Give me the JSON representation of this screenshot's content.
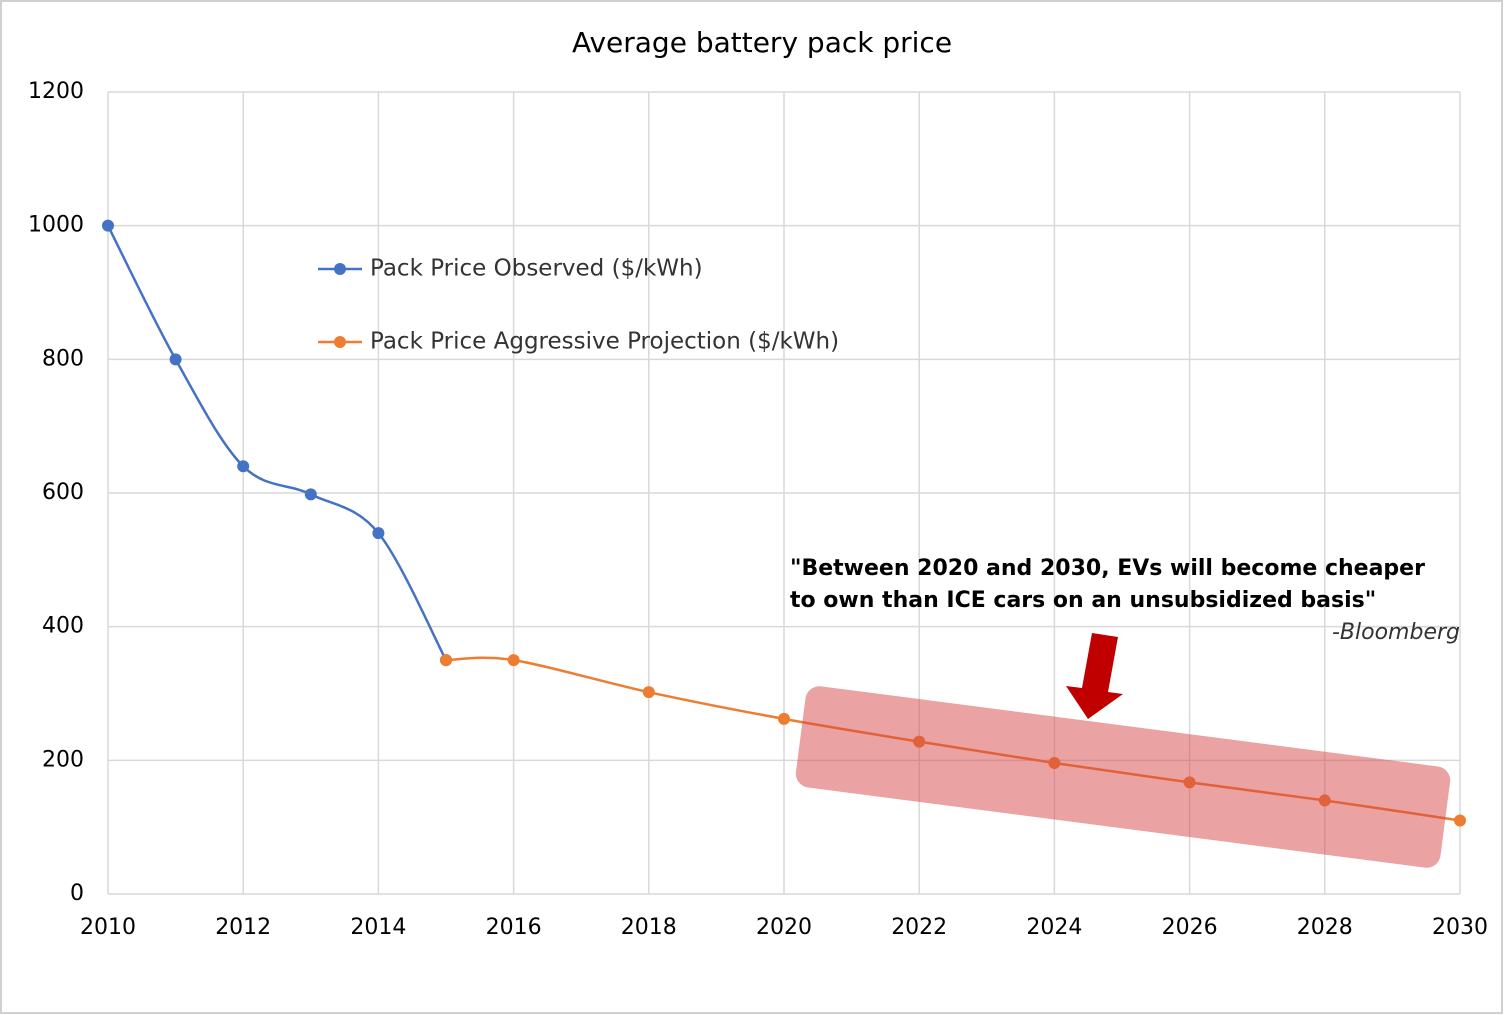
{
  "chart_data": {
    "type": "line",
    "title": "Average battery pack price",
    "x": [
      2010,
      2011,
      2012,
      2013,
      2014,
      2015,
      2016,
      2018,
      2020,
      2022,
      2024,
      2026,
      2028,
      2030
    ],
    "series": [
      {
        "name": "Pack Price Observed ($/kWh)",
        "color": "#4472c4",
        "values": [
          1000,
          800,
          640,
          598,
          540,
          350,
          null,
          null,
          null,
          null,
          null,
          null,
          null,
          null
        ]
      },
      {
        "name": "Pack Price Aggressive Projection ($/kWh)",
        "color": "#ed7d31",
        "values": [
          null,
          null,
          null,
          null,
          null,
          350,
          350,
          302,
          262,
          228,
          196,
          167,
          140,
          110
        ]
      }
    ],
    "xlim": [
      2010,
      2030
    ],
    "xticks": [
      2010,
      2012,
      2014,
      2016,
      2018,
      2020,
      2022,
      2024,
      2026,
      2028,
      2030
    ],
    "ylim": [
      0,
      1200
    ],
    "yticks": [
      0,
      200,
      400,
      600,
      800,
      1000,
      1200
    ],
    "grid": true,
    "smooth": true,
    "annotation": {
      "lines": [
        "\"Between 2020 and 2030, EVs will become cheaper",
        "to own than ICE cars on an unsubsidized basis\""
      ],
      "source": "-Bloomberg"
    }
  }
}
